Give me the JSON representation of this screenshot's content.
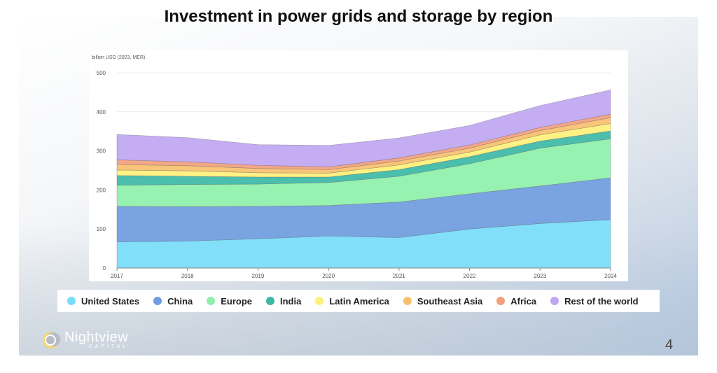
{
  "slide": {
    "title": "Investment in power grids and storage by region",
    "page_number": "4"
  },
  "logo": {
    "name": "Nightview",
    "subtitle": "CAPITAL"
  },
  "chart_data": {
    "type": "area",
    "stacked": true,
    "title": "Investment in power grids and storage by region",
    "unit_label": "billion USD (2023, MER)",
    "x": [
      "2017",
      "2018",
      "2019",
      "2020",
      "2021",
      "2022",
      "2023",
      "2024"
    ],
    "y_ticks": [
      0,
      100,
      200,
      300,
      400,
      500
    ],
    "ylim": [
      0,
      500
    ],
    "grid": true,
    "legend_position": "bottom",
    "series": [
      {
        "name": "United States",
        "color": "#76dcfa",
        "values": [
          67,
          69,
          75,
          82,
          78,
          100,
          114,
          124
        ]
      },
      {
        "name": "China",
        "color": "#6f9be0",
        "values": [
          91,
          88,
          83,
          78,
          91,
          90,
          96,
          107
        ]
      },
      {
        "name": "Europe",
        "color": "#8ef0aa",
        "values": [
          54,
          57,
          57,
          59,
          66,
          77,
          97,
          100
        ]
      },
      {
        "name": "India",
        "color": "#3cb8a6",
        "values": [
          25,
          21,
          18,
          14,
          17,
          18,
          18,
          20
        ]
      },
      {
        "name": "Latin America",
        "color": "#fff07a",
        "values": [
          14,
          14,
          11,
          10,
          12,
          12,
          16,
          19
        ]
      },
      {
        "name": "Southeast Asia",
        "color": "#f7c06e",
        "values": [
          14,
          13,
          11,
          9,
          10,
          10,
          11,
          15
        ]
      },
      {
        "name": "Africa",
        "color": "#f2a07e",
        "values": [
          12,
          10,
          8,
          7,
          8,
          8,
          8,
          9
        ]
      },
      {
        "name": "Rest of the world",
        "color": "#c0a6f2",
        "values": [
          65,
          62,
          53,
          55,
          51,
          50,
          56,
          62
        ]
      }
    ]
  }
}
